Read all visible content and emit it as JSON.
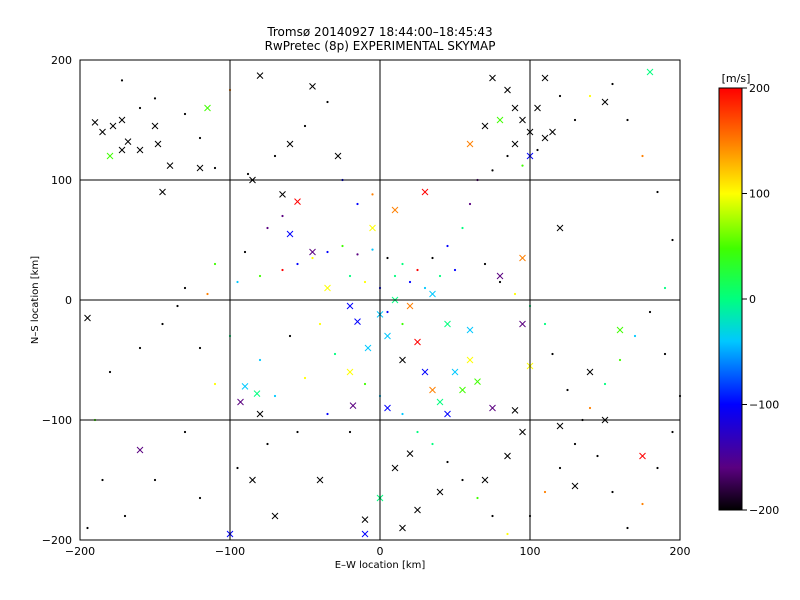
{
  "chart_data": {
    "type": "scatter",
    "title": "Tromsø 20140927 18:44:00–18:45:43",
    "subtitle": "RwPretec (8p) EXPERIMENTAL SKYMAP",
    "xlabel": "E–W location [km]",
    "ylabel": "N–S location [km]",
    "xlim": [
      -200,
      200
    ],
    "ylim": [
      -200,
      200
    ],
    "xticks": [
      "−200",
      "−100",
      "0",
      "100",
      "200"
    ],
    "yticks": [
      "−200",
      "−100",
      "0",
      "100",
      "200"
    ],
    "grid": true,
    "grid_values": [
      -100,
      0,
      100
    ],
    "colorbar": {
      "label": "[m/s]",
      "min": -200,
      "max": 200,
      "ticks": [
        "200",
        "100",
        "0",
        "−100",
        "−200"
      ],
      "colormap": "rainbow (black-purple-blue-cyan-green-yellow-red)"
    },
    "markers": [
      "cross for strong echoes",
      "dot for weak echoes"
    ],
    "series": [
      {
        "marker": "x",
        "points": [
          [
            -190,
            148
          ],
          [
            -185,
            140
          ],
          [
            -178,
            145
          ],
          [
            -172,
            150
          ],
          [
            -168,
            132
          ],
          [
            -160,
            125
          ],
          [
            -172,
            125
          ],
          [
            -180,
            120
          ],
          [
            -150,
            145
          ],
          [
            -148,
            130
          ],
          [
            -115,
            160
          ],
          [
            -145,
            90
          ],
          [
            -140,
            112
          ],
          [
            -120,
            110
          ],
          [
            -85,
            100
          ],
          [
            -80,
            187
          ],
          [
            -45,
            178
          ],
          [
            -60,
            130
          ],
          [
            -28,
            120
          ],
          [
            -65,
            88
          ],
          [
            -55,
            82
          ],
          [
            -160,
            -125
          ],
          [
            -195,
            -15
          ],
          [
            -93,
            -85
          ],
          [
            -90,
            -72
          ],
          [
            -82,
            -78
          ],
          [
            -80,
            -95
          ],
          [
            -40,
            -150
          ],
          [
            -10,
            -183
          ],
          [
            0,
            -165
          ],
          [
            10,
            -140
          ],
          [
            20,
            -128
          ],
          [
            5,
            -90
          ],
          [
            -18,
            -88
          ],
          [
            -20,
            -60
          ],
          [
            -8,
            -40
          ],
          [
            5,
            -30
          ],
          [
            15,
            -50
          ],
          [
            25,
            -35
          ],
          [
            30,
            -60
          ],
          [
            35,
            -75
          ],
          [
            40,
            -85
          ],
          [
            45,
            -95
          ],
          [
            55,
            -75
          ],
          [
            50,
            -60
          ],
          [
            60,
            -50
          ],
          [
            65,
            -68
          ],
          [
            75,
            -90
          ],
          [
            90,
            -92
          ],
          [
            95,
            -110
          ],
          [
            85,
            -130
          ],
          [
            70,
            -150
          ],
          [
            40,
            -160
          ],
          [
            25,
            -175
          ],
          [
            15,
            -190
          ],
          [
            -10,
            -195
          ],
          [
            60,
            -25
          ],
          [
            45,
            -20
          ],
          [
            35,
            5
          ],
          [
            20,
            -5
          ],
          [
            10,
            0
          ],
          [
            0,
            -12
          ],
          [
            -15,
            -18
          ],
          [
            -20,
            -5
          ],
          [
            -35,
            10
          ],
          [
            -45,
            40
          ],
          [
            -60,
            55
          ],
          [
            -5,
            60
          ],
          [
            10,
            75
          ],
          [
            30,
            90
          ],
          [
            60,
            130
          ],
          [
            80,
            150
          ],
          [
            90,
            130
          ],
          [
            95,
            150
          ],
          [
            100,
            140
          ],
          [
            105,
            160
          ],
          [
            110,
            135
          ],
          [
            115,
            140
          ],
          [
            90,
            160
          ],
          [
            100,
            120
          ],
          [
            75,
            185
          ],
          [
            70,
            145
          ],
          [
            85,
            175
          ],
          [
            110,
            185
          ],
          [
            150,
            165
          ],
          [
            180,
            190
          ],
          [
            160,
            -25
          ],
          [
            140,
            -60
          ],
          [
            150,
            -100
          ],
          [
            175,
            -130
          ],
          [
            120,
            -105
          ],
          [
            130,
            -155
          ],
          [
            95,
            -20
          ],
          [
            100,
            -55
          ],
          [
            -70,
            -180
          ],
          [
            -85,
            -150
          ],
          [
            -100,
            -195
          ],
          [
            95,
            35
          ],
          [
            80,
            20
          ],
          [
            120,
            60
          ]
        ]
      },
      {
        "marker": "dot",
        "points": [
          [
            -172,
            183
          ],
          [
            -150,
            168
          ],
          [
            -120,
            135
          ],
          [
            -100,
            175
          ],
          [
            -130,
            155
          ],
          [
            -160,
            160
          ],
          [
            -110,
            110
          ],
          [
            -88,
            105
          ],
          [
            -70,
            120
          ],
          [
            -50,
            145
          ],
          [
            -35,
            165
          ],
          [
            -25,
            100
          ],
          [
            -15,
            80
          ],
          [
            -5,
            88
          ],
          [
            -65,
            70
          ],
          [
            -75,
            60
          ],
          [
            -90,
            40
          ],
          [
            -110,
            30
          ],
          [
            -130,
            10
          ],
          [
            -145,
            -20
          ],
          [
            -120,
            -40
          ],
          [
            -100,
            -30
          ],
          [
            -80,
            -50
          ],
          [
            -60,
            -30
          ],
          [
            -40,
            -20
          ],
          [
            -30,
            -45
          ],
          [
            -50,
            -65
          ],
          [
            -70,
            -80
          ],
          [
            -110,
            -70
          ],
          [
            -130,
            -110
          ],
          [
            -150,
            -150
          ],
          [
            -170,
            -180
          ],
          [
            -120,
            -165
          ],
          [
            -95,
            -140
          ],
          [
            -75,
            -120
          ],
          [
            -55,
            -110
          ],
          [
            -35,
            -95
          ],
          [
            -20,
            -110
          ],
          [
            -10,
            -70
          ],
          [
            0,
            -80
          ],
          [
            15,
            -95
          ],
          [
            25,
            -110
          ],
          [
            35,
            -120
          ],
          [
            45,
            -135
          ],
          [
            55,
            -150
          ],
          [
            65,
            -165
          ],
          [
            75,
            -180
          ],
          [
            85,
            -195
          ],
          [
            100,
            -180
          ],
          [
            110,
            -160
          ],
          [
            120,
            -140
          ],
          [
            130,
            -120
          ],
          [
            140,
            -90
          ],
          [
            150,
            -70
          ],
          [
            160,
            -50
          ],
          [
            170,
            -30
          ],
          [
            180,
            -10
          ],
          [
            190,
            10
          ],
          [
            195,
            50
          ],
          [
            185,
            90
          ],
          [
            175,
            120
          ],
          [
            165,
            150
          ],
          [
            155,
            180
          ],
          [
            140,
            170
          ],
          [
            130,
            150
          ],
          [
            120,
            170
          ],
          [
            105,
            125
          ],
          [
            95,
            112
          ],
          [
            85,
            120
          ],
          [
            75,
            108
          ],
          [
            65,
            100
          ],
          [
            60,
            80
          ],
          [
            55,
            60
          ],
          [
            45,
            45
          ],
          [
            35,
            35
          ],
          [
            25,
            25
          ],
          [
            15,
            30
          ],
          [
            5,
            35
          ],
          [
            -5,
            42
          ],
          [
            -15,
            38
          ],
          [
            -25,
            45
          ],
          [
            -35,
            40
          ],
          [
            -45,
            35
          ],
          [
            -55,
            30
          ],
          [
            -65,
            25
          ],
          [
            -80,
            20
          ],
          [
            -95,
            15
          ],
          [
            -115,
            5
          ],
          [
            -135,
            -5
          ],
          [
            -160,
            -40
          ],
          [
            -180,
            -60
          ],
          [
            -190,
            -100
          ],
          [
            -185,
            -150
          ],
          [
            -195,
            -190
          ],
          [
            10,
            20
          ],
          [
            20,
            15
          ],
          [
            30,
            10
          ],
          [
            40,
            20
          ],
          [
            50,
            25
          ],
          [
            70,
            30
          ],
          [
            80,
            15
          ],
          [
            90,
            5
          ],
          [
            100,
            -5
          ],
          [
            110,
            -20
          ],
          [
            115,
            -45
          ],
          [
            125,
            -75
          ],
          [
            135,
            -100
          ],
          [
            145,
            -130
          ],
          [
            155,
            -160
          ],
          [
            165,
            -190
          ],
          [
            175,
            -170
          ],
          [
            185,
            -140
          ],
          [
            195,
            -110
          ],
          [
            200,
            -80
          ],
          [
            190,
            -45
          ],
          [
            0,
            10
          ],
          [
            -10,
            15
          ],
          [
            -20,
            20
          ],
          [
            5,
            -10
          ],
          [
            15,
            -20
          ]
        ]
      }
    ]
  }
}
